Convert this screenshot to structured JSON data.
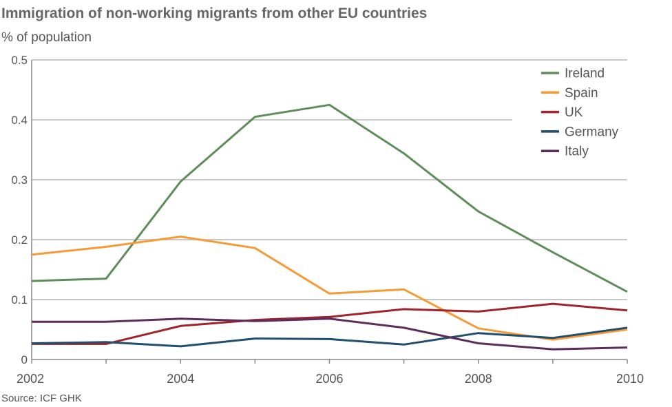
{
  "title": "Immigration of non-working migrants from other EU countries",
  "subtitle": "% of population",
  "source": "Source: ICF GHK",
  "chart_data": {
    "type": "line",
    "title": "Immigration of non-working migrants from other EU countries",
    "ylabel": "% of population",
    "xlabel": "",
    "x": [
      2002,
      2003,
      2004,
      2005,
      2006,
      2007,
      2008,
      2009,
      2010
    ],
    "xlim": [
      2002,
      2010
    ],
    "ylim": [
      0,
      0.5
    ],
    "x_ticks": [
      "2002",
      "2004",
      "2006",
      "2008",
      "2010"
    ],
    "y_ticks": [
      "0",
      "0.1",
      "0.2",
      "0.3",
      "0.4",
      "0.5"
    ],
    "grid": "horizontal",
    "legend_position": "top-right",
    "series": [
      {
        "name": "Ireland",
        "color": "#5e8d5a",
        "values": [
          0.131,
          0.135,
          0.297,
          0.405,
          0.425,
          0.344,
          0.247,
          0.179,
          0.113
        ]
      },
      {
        "name": "Spain",
        "color": "#f59a35",
        "values": [
          0.175,
          0.188,
          0.205,
          0.186,
          0.11,
          0.117,
          0.052,
          0.033,
          0.05
        ]
      },
      {
        "name": "UK",
        "color": "#a1232b",
        "values": [
          0.026,
          0.026,
          0.056,
          0.066,
          0.071,
          0.084,
          0.08,
          0.093,
          0.082
        ]
      },
      {
        "name": "Germany",
        "color": "#1f4e6e",
        "values": [
          0.027,
          0.029,
          0.022,
          0.035,
          0.034,
          0.025,
          0.044,
          0.036,
          0.053
        ]
      },
      {
        "name": "Italy",
        "color": "#5c2d5c",
        "values": [
          0.063,
          0.063,
          0.068,
          0.064,
          0.068,
          0.053,
          0.027,
          0.017,
          0.02
        ]
      }
    ]
  }
}
